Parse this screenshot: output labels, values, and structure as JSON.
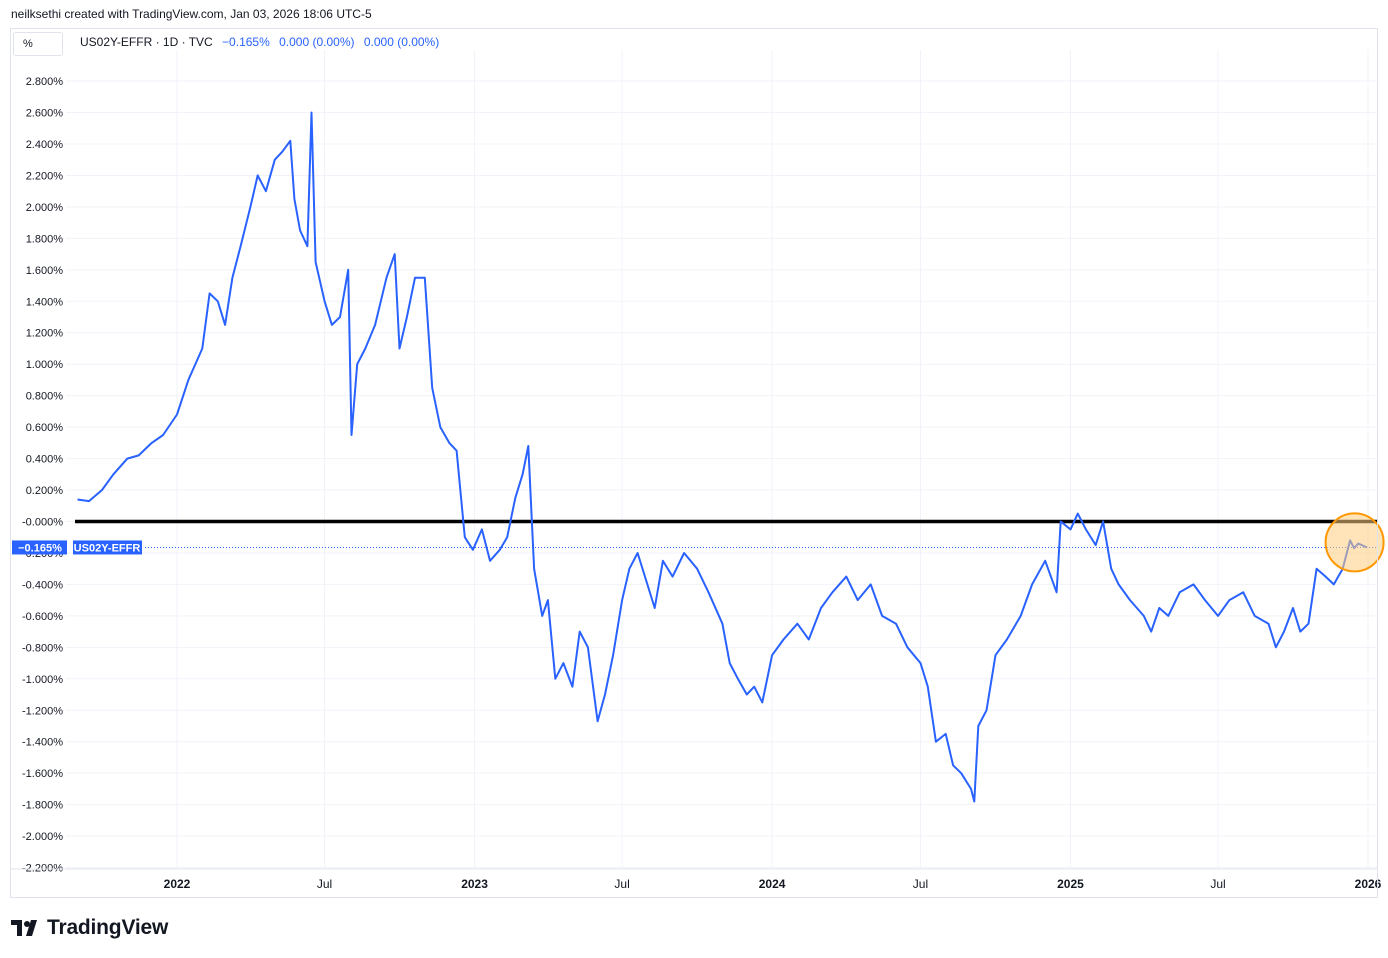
{
  "header": {
    "creator_text": "neilksethi created with TradingView.com, Jan 03, 2026 18:06 UTC-5"
  },
  "toolbar": {
    "percent_label": "%"
  },
  "legend": {
    "symbol": "US02Y-EFFR · 1D · TVC",
    "last": "−0.165%",
    "change": "0.000 (0.00%)",
    "change2": "0.000 (0.00%)"
  },
  "price_tag": {
    "value": "−0.165%",
    "series": "US02Y-EFFR"
  },
  "footer": {
    "brand": "TradingView"
  },
  "colors": {
    "line": "#2962ff",
    "zero_line": "#000000",
    "highlight_fill": "#ffcc80",
    "highlight_stroke": "#ff9800",
    "grid": "#f0f3fa"
  },
  "chart_data": {
    "type": "line",
    "title": "",
    "xlabel": "",
    "ylabel": "",
    "ylim": [
      -2.2,
      2.9
    ],
    "grid": true,
    "y_ticks": [
      "2.800%",
      "2.600%",
      "2.400%",
      "2.200%",
      "2.000%",
      "1.800%",
      "1.600%",
      "1.400%",
      "1.200%",
      "1.000%",
      "0.800%",
      "0.600%",
      "0.400%",
      "0.200%",
      "-0.000%",
      "-0.200%",
      "-0.400%",
      "-0.600%",
      "-0.800%",
      "-1.000%",
      "-1.200%",
      "-1.400%",
      "-1.600%",
      "-1.800%",
      "-2.000%",
      "-2.200%"
    ],
    "x_ticks": [
      {
        "date": "2022-01-01",
        "label": "2022"
      },
      {
        "date": "2022-07-01",
        "label": "Jul"
      },
      {
        "date": "2023-01-01",
        "label": "2023"
      },
      {
        "date": "2023-07-01",
        "label": "Jul"
      },
      {
        "date": "2024-01-01",
        "label": "2024"
      },
      {
        "date": "2024-07-01",
        "label": "Jul"
      },
      {
        "date": "2025-01-01",
        "label": "2025"
      },
      {
        "date": "2025-07-01",
        "label": "Jul"
      },
      {
        "date": "2026-01-01",
        "label": "2026"
      }
    ],
    "horizontal_lines": [
      {
        "value": 0.0,
        "label": "-0.000%"
      }
    ],
    "series": [
      {
        "name": "US02Y-EFFR",
        "points": [
          [
            "2021-09-01",
            0.14
          ],
          [
            "2021-09-15",
            0.13
          ],
          [
            "2021-10-01",
            0.2
          ],
          [
            "2021-10-15",
            0.3
          ],
          [
            "2021-11-01",
            0.4
          ],
          [
            "2021-11-15",
            0.42
          ],
          [
            "2021-12-01",
            0.5
          ],
          [
            "2021-12-15",
            0.55
          ],
          [
            "2022-01-01",
            0.68
          ],
          [
            "2022-01-15",
            0.9
          ],
          [
            "2022-02-01",
            1.1
          ],
          [
            "2022-02-10",
            1.45
          ],
          [
            "2022-02-20",
            1.4
          ],
          [
            "2022-03-01",
            1.25
          ],
          [
            "2022-03-10",
            1.55
          ],
          [
            "2022-03-20",
            1.75
          ],
          [
            "2022-04-01",
            2.0
          ],
          [
            "2022-04-10",
            2.2
          ],
          [
            "2022-04-20",
            2.1
          ],
          [
            "2022-05-01",
            2.3
          ],
          [
            "2022-05-10",
            2.35
          ],
          [
            "2022-05-20",
            2.42
          ],
          [
            "2022-05-25",
            2.05
          ],
          [
            "2022-06-01",
            1.85
          ],
          [
            "2022-06-10",
            1.75
          ],
          [
            "2022-06-15",
            2.6
          ],
          [
            "2022-06-20",
            1.65
          ],
          [
            "2022-07-01",
            1.4
          ],
          [
            "2022-07-10",
            1.25
          ],
          [
            "2022-07-20",
            1.3
          ],
          [
            "2022-07-30",
            1.6
          ],
          [
            "2022-08-03",
            0.55
          ],
          [
            "2022-08-10",
            1.0
          ],
          [
            "2022-08-20",
            1.1
          ],
          [
            "2022-09-01",
            1.25
          ],
          [
            "2022-09-15",
            1.55
          ],
          [
            "2022-09-25",
            1.7
          ],
          [
            "2022-10-01",
            1.1
          ],
          [
            "2022-10-10",
            1.3
          ],
          [
            "2022-10-20",
            1.55
          ],
          [
            "2022-11-01",
            1.55
          ],
          [
            "2022-11-10",
            0.85
          ],
          [
            "2022-11-20",
            0.6
          ],
          [
            "2022-12-01",
            0.5
          ],
          [
            "2022-12-10",
            0.45
          ],
          [
            "2022-12-20",
            -0.1
          ],
          [
            "2022-12-30",
            -0.18
          ],
          [
            "2023-01-10",
            -0.05
          ],
          [
            "2023-01-20",
            -0.25
          ],
          [
            "2023-02-01",
            -0.18
          ],
          [
            "2023-02-10",
            -0.1
          ],
          [
            "2023-02-20",
            0.15
          ],
          [
            "2023-03-01",
            0.3
          ],
          [
            "2023-03-08",
            0.48
          ],
          [
            "2023-03-15",
            -0.3
          ],
          [
            "2023-03-25",
            -0.6
          ],
          [
            "2023-04-01",
            -0.5
          ],
          [
            "2023-04-10",
            -1.0
          ],
          [
            "2023-04-20",
            -0.9
          ],
          [
            "2023-05-01",
            -1.05
          ],
          [
            "2023-05-10",
            -0.7
          ],
          [
            "2023-05-20",
            -0.8
          ],
          [
            "2023-06-01",
            -1.27
          ],
          [
            "2023-06-10",
            -1.1
          ],
          [
            "2023-06-20",
            -0.85
          ],
          [
            "2023-07-01",
            -0.5
          ],
          [
            "2023-07-10",
            -0.3
          ],
          [
            "2023-07-20",
            -0.2
          ],
          [
            "2023-08-01",
            -0.4
          ],
          [
            "2023-08-10",
            -0.55
          ],
          [
            "2023-08-20",
            -0.25
          ],
          [
            "2023-09-01",
            -0.35
          ],
          [
            "2023-09-15",
            -0.2
          ],
          [
            "2023-10-01",
            -0.3
          ],
          [
            "2023-10-15",
            -0.45
          ],
          [
            "2023-11-01",
            -0.65
          ],
          [
            "2023-11-10",
            -0.9
          ],
          [
            "2023-11-20",
            -1.0
          ],
          [
            "2023-12-01",
            -1.1
          ],
          [
            "2023-12-10",
            -1.05
          ],
          [
            "2023-12-20",
            -1.15
          ],
          [
            "2024-01-01",
            -0.85
          ],
          [
            "2024-01-15",
            -0.75
          ],
          [
            "2024-02-01",
            -0.65
          ],
          [
            "2024-02-15",
            -0.75
          ],
          [
            "2024-03-01",
            -0.55
          ],
          [
            "2024-03-15",
            -0.45
          ],
          [
            "2024-04-01",
            -0.35
          ],
          [
            "2024-04-15",
            -0.5
          ],
          [
            "2024-05-01",
            -0.4
          ],
          [
            "2024-05-15",
            -0.6
          ],
          [
            "2024-06-01",
            -0.65
          ],
          [
            "2024-06-15",
            -0.8
          ],
          [
            "2024-07-01",
            -0.9
          ],
          [
            "2024-07-10",
            -1.05
          ],
          [
            "2024-07-20",
            -1.4
          ],
          [
            "2024-08-01",
            -1.35
          ],
          [
            "2024-08-10",
            -1.55
          ],
          [
            "2024-08-20",
            -1.6
          ],
          [
            "2024-09-01",
            -1.7
          ],
          [
            "2024-09-05",
            -1.78
          ],
          [
            "2024-09-10",
            -1.3
          ],
          [
            "2024-09-20",
            -1.2
          ],
          [
            "2024-10-01",
            -0.85
          ],
          [
            "2024-10-15",
            -0.75
          ],
          [
            "2024-11-01",
            -0.6
          ],
          [
            "2024-11-15",
            -0.4
          ],
          [
            "2024-12-01",
            -0.25
          ],
          [
            "2024-12-15",
            -0.45
          ],
          [
            "2024-12-20",
            0.0
          ],
          [
            "2025-01-01",
            -0.05
          ],
          [
            "2025-01-10",
            0.05
          ],
          [
            "2025-01-20",
            -0.05
          ],
          [
            "2025-02-01",
            -0.15
          ],
          [
            "2025-02-10",
            0.0
          ],
          [
            "2025-02-20",
            -0.3
          ],
          [
            "2025-03-01",
            -0.4
          ],
          [
            "2025-03-15",
            -0.5
          ],
          [
            "2025-04-01",
            -0.6
          ],
          [
            "2025-04-10",
            -0.7
          ],
          [
            "2025-04-20",
            -0.55
          ],
          [
            "2025-05-01",
            -0.6
          ],
          [
            "2025-05-15",
            -0.45
          ],
          [
            "2025-06-01",
            -0.4
          ],
          [
            "2025-06-15",
            -0.5
          ],
          [
            "2025-07-01",
            -0.6
          ],
          [
            "2025-07-15",
            -0.5
          ],
          [
            "2025-08-01",
            -0.45
          ],
          [
            "2025-08-15",
            -0.6
          ],
          [
            "2025-09-01",
            -0.65
          ],
          [
            "2025-09-10",
            -0.8
          ],
          [
            "2025-09-20",
            -0.7
          ],
          [
            "2025-10-01",
            -0.55
          ],
          [
            "2025-10-10",
            -0.7
          ],
          [
            "2025-10-20",
            -0.65
          ],
          [
            "2025-10-30",
            -0.3
          ],
          [
            "2025-11-10",
            -0.35
          ],
          [
            "2025-11-20",
            -0.4
          ],
          [
            "2025-12-01",
            -0.3
          ],
          [
            "2025-12-10",
            -0.12
          ],
          [
            "2025-12-15",
            -0.17
          ],
          [
            "2025-12-20",
            -0.14
          ],
          [
            "2025-12-31",
            -0.165
          ]
        ]
      }
    ],
    "highlight": {
      "date": "2025-12-18",
      "value": -0.12
    }
  }
}
